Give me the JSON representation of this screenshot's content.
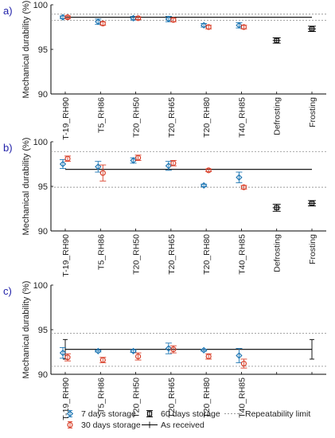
{
  "chart_data": [
    {
      "panel_label": "a)",
      "type": "scatter",
      "ylabel": "Mechanical durability (%)",
      "ylim": [
        90,
        100
      ],
      "yticks": [
        "90",
        "95",
        "100"
      ],
      "categories": [
        "T-19_RH90",
        "T5_RH86",
        "T20_RH50",
        "T20_RH65",
        "T20_RH80",
        "T40_RH85",
        "Defrosting",
        "Frosting"
      ],
      "as_received": 98.6,
      "repeatability_limits": [
        98.95,
        98.25
      ],
      "series": [
        {
          "name": "7 days storage",
          "values": [
            98.6,
            98.1,
            98.5,
            98.4,
            97.7,
            97.7,
            null,
            null
          ],
          "err": [
            0.15,
            0.3,
            0.2,
            0.3,
            0.2,
            0.3,
            null,
            null
          ]
        },
        {
          "name": "30 days storage",
          "values": [
            98.6,
            97.9,
            98.5,
            98.3,
            97.5,
            97.5,
            null,
            null
          ],
          "err": [
            0.15,
            0.2,
            0.15,
            0.2,
            0.2,
            0.2,
            null,
            null
          ]
        },
        {
          "name": "60 days storage",
          "values": [
            null,
            null,
            null,
            null,
            null,
            null,
            96.0,
            97.3
          ],
          "err": [
            null,
            null,
            null,
            null,
            null,
            null,
            0.3,
            0.3
          ]
        }
      ]
    },
    {
      "panel_label": "b)",
      "type": "scatter",
      "ylabel": "Mechanical durability (%)",
      "ylim": [
        90,
        100
      ],
      "yticks": [
        "90",
        "95",
        "100"
      ],
      "categories": [
        "T-19_RH90",
        "T5_RH86",
        "T20_RH50",
        "T20_RH65",
        "T20_RH80",
        "T40_RH85",
        "Defrosting",
        "Frosting"
      ],
      "as_received": 96.9,
      "repeatability_limits": [
        98.9,
        94.9
      ],
      "series": [
        {
          "name": "7 days storage",
          "values": [
            97.5,
            97.2,
            97.9,
            97.3,
            95.1,
            96.0,
            null,
            null
          ],
          "err": [
            0.5,
            0.6,
            0.3,
            0.5,
            0.15,
            0.6,
            null,
            null
          ]
        },
        {
          "name": "30 days storage",
          "values": [
            98.1,
            96.5,
            98.2,
            97.6,
            96.8,
            94.9,
            null,
            null
          ],
          "err": [
            0.3,
            0.9,
            0.3,
            0.3,
            0.15,
            0.2,
            null,
            null
          ]
        },
        {
          "name": "60 days storage",
          "values": [
            null,
            null,
            null,
            null,
            null,
            null,
            92.6,
            93.1
          ],
          "err": [
            null,
            null,
            null,
            null,
            null,
            null,
            0.4,
            0.3
          ]
        }
      ]
    },
    {
      "panel_label": "c)",
      "type": "scatter",
      "ylabel": "Mechanical durability (%)",
      "ylim": [
        90,
        100
      ],
      "yticks": [
        "90",
        "95",
        "100"
      ],
      "categories": [
        "T-19_RH90",
        "T5_RH86",
        "T20_RH50",
        "T20_RH65",
        "T20_RH80",
        "T40_RH85",
        "",
        ""
      ],
      "as_received": 92.8,
      "as_received_err": 1.1,
      "repeatability_limits": [
        94.6,
        90.9
      ],
      "series": [
        {
          "name": "7 days storage",
          "values": [
            92.4,
            92.6,
            92.6,
            92.9,
            92.7,
            92.1,
            null,
            null
          ],
          "err": [
            0.6,
            0.1,
            0.15,
            0.6,
            0.1,
            0.8,
            null,
            null
          ]
        },
        {
          "name": "30 days storage",
          "values": [
            91.9,
            91.6,
            92.0,
            92.8,
            92.0,
            91.2,
            null,
            null
          ],
          "err": [
            0.4,
            0.3,
            0.4,
            0.4,
            0.3,
            0.5,
            null,
            null
          ]
        },
        {
          "name": "60 days storage",
          "values": [
            null,
            null,
            null,
            null,
            null,
            null,
            null,
            null
          ],
          "err": [
            null,
            null,
            null,
            null,
            null,
            null,
            null,
            null
          ]
        }
      ]
    }
  ],
  "legend": {
    "placement": "bottom",
    "entries": [
      {
        "label": "7 days storage",
        "marker": "diamond",
        "color": "#1f77b4"
      },
      {
        "label": "30 days storage",
        "marker": "circle",
        "color": "#d9412b"
      },
      {
        "label": "60 days storage",
        "marker": "square",
        "color": "#000000"
      },
      {
        "label": "As received",
        "marker": "line",
        "color": "#000000"
      },
      {
        "label": "Repeatability limit",
        "marker": "dotted",
        "color": "#9a9a9a"
      }
    ]
  },
  "colors": {
    "seven_days": "#1f77b4",
    "thirty_days": "#d9412b",
    "sixty_days": "#000000",
    "as_received": "#000000",
    "repeatability": "#9a9a9a",
    "panel_label": "#1f1fa8",
    "axis": "#000000"
  }
}
